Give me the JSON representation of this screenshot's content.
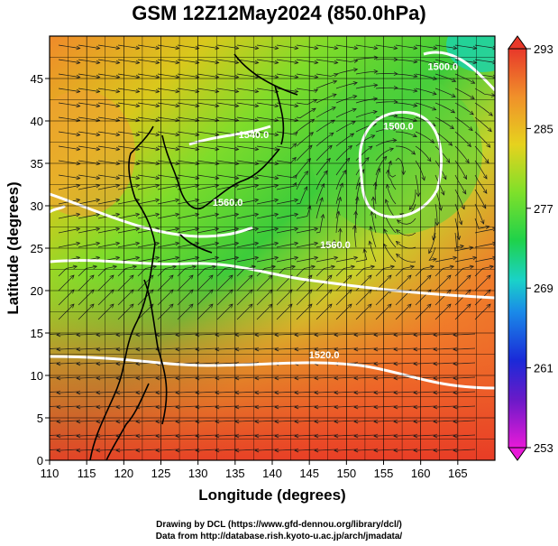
{
  "title": "GSM 12Z12May2024 (850.0hPa)",
  "credits": {
    "line1": "Drawing by DCL (https://www.gfd-dennou.org/library/dcl/)",
    "line2": "Data from http://database.rish.kyoto-u.ac.jp/arch/jmadata/"
  },
  "chart_data": {
    "type": "heatmap",
    "xlabel": "Longitude (degrees)",
    "ylabel": "Latitude  (degrees)",
    "xlim": [
      110,
      170
    ],
    "ylim": [
      0,
      50
    ],
    "xticks": [
      110,
      115,
      120,
      125,
      130,
      135,
      140,
      145,
      150,
      155,
      160,
      165
    ],
    "yticks": [
      0,
      5,
      10,
      15,
      20,
      25,
      30,
      35,
      40,
      45
    ],
    "grid": true,
    "colorbar": {
      "ticks": [
        293,
        285,
        277,
        269,
        261,
        253
      ],
      "range": [
        253,
        293
      ]
    },
    "contour_labels": [
      {
        "text": "1560.0",
        "lon": 148.5,
        "lat": 25.0
      },
      {
        "text": "1520.0",
        "lon": 147.0,
        "lat": 12.0
      },
      {
        "text": "1500.0",
        "lon": 157.0,
        "lat": 39.0
      },
      {
        "text": "1540.0",
        "lon": 137.5,
        "lat": 38.0
      },
      {
        "text": "1560.0",
        "lon": 134.0,
        "lat": 30.0
      },
      {
        "text": "1500.0",
        "lon": 163.0,
        "lat": 46.0
      }
    ]
  }
}
